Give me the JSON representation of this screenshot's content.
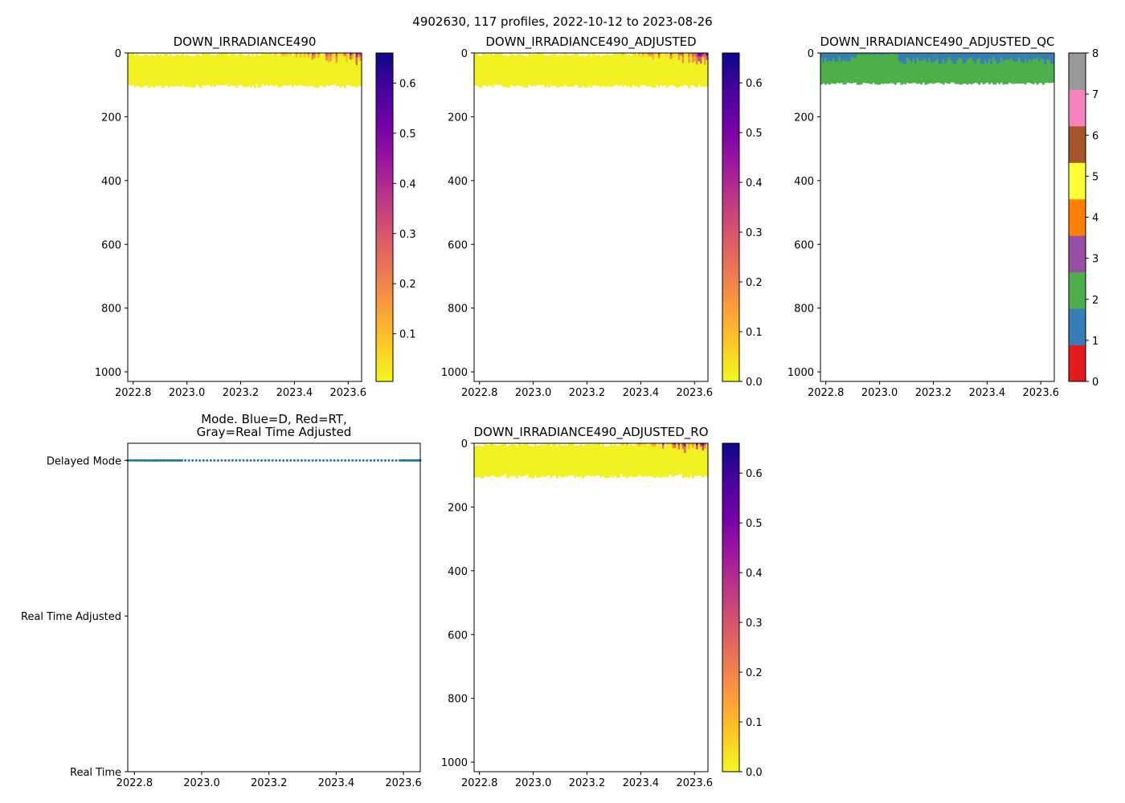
{
  "figure": {
    "suptitle": "4902630, 117 profiles, 2022-10-12 to 2023-08-26"
  },
  "colors": {
    "colormap": [
      "#f0f921",
      "#fdca26",
      "#fb9f3a",
      "#ed7953",
      "#d8576b",
      "#bd3786",
      "#9c179e",
      "#7201a8",
      "#46039f",
      "#0d0887"
    ],
    "qc_palette": [
      "#e41a1c",
      "#377eb8",
      "#4daf4a",
      "#984ea3",
      "#ff7f00",
      "#ffff33",
      "#a65628",
      "#f781bf",
      "#999999"
    ],
    "mode_marker": "#1f77b4"
  },
  "chart_data": [
    {
      "id": "p1",
      "type": "heatmap",
      "title": "DOWN_IRRADIANCE490",
      "xlabel": "",
      "ylabel": "",
      "xlim": [
        2022.78,
        2023.65
      ],
      "ylim": [
        1030,
        0
      ],
      "x_ticks": [
        2022.8,
        2023.0,
        2023.2,
        2023.4,
        2023.6
      ],
      "x_tick_labels": [
        "2022.8",
        "2023.0",
        "2023.2",
        "2023.4",
        "2023.6"
      ],
      "y_ticks": [
        0,
        200,
        400,
        600,
        800,
        1000
      ],
      "y_tick_labels": [
        "0",
        "200",
        "400",
        "600",
        "800",
        "1000"
      ],
      "data_depth_range": [
        0,
        100
      ],
      "time_range": [
        2022.78,
        2023.65
      ],
      "colorbar": {
        "range": [
          0.005,
          0.66
        ],
        "ticks": [
          0.1,
          0.2,
          0.3,
          0.4,
          0.5,
          0.6
        ],
        "tick_labels": [
          "0.1",
          "0.2",
          "0.3",
          "0.4",
          "0.5",
          "0.6"
        ]
      }
    },
    {
      "id": "p2",
      "type": "heatmap",
      "title": "DOWN_IRRADIANCE490_ADJUSTED",
      "xlabel": "",
      "ylabel": "",
      "xlim": [
        2022.78,
        2023.65
      ],
      "ylim": [
        1030,
        0
      ],
      "x_ticks": [
        2022.8,
        2023.0,
        2023.2,
        2023.4,
        2023.6
      ],
      "x_tick_labels": [
        "2022.8",
        "2023.0",
        "2023.2",
        "2023.4",
        "2023.6"
      ],
      "y_ticks": [
        0,
        200,
        400,
        600,
        800,
        1000
      ],
      "y_tick_labels": [
        "0",
        "200",
        "400",
        "600",
        "800",
        "1000"
      ],
      "data_depth_range": [
        0,
        100
      ],
      "time_range": [
        2022.78,
        2023.65
      ],
      "colorbar": {
        "range": [
          0.0,
          0.66
        ],
        "ticks": [
          0.0,
          0.1,
          0.2,
          0.3,
          0.4,
          0.5,
          0.6
        ],
        "tick_labels": [
          "0.0",
          "0.1",
          "0.2",
          "0.3",
          "0.4",
          "0.5",
          "0.6"
        ]
      }
    },
    {
      "id": "p3",
      "type": "heatmap",
      "title": "DOWN_IRRADIANCE490_ADJUSTED_QC",
      "xlabel": "",
      "ylabel": "",
      "xlim": [
        2022.78,
        2023.65
      ],
      "ylim": [
        1030,
        0
      ],
      "x_ticks": [
        2022.8,
        2023.0,
        2023.2,
        2023.4,
        2023.6
      ],
      "x_tick_labels": [
        "2022.8",
        "2023.0",
        "2023.2",
        "2023.4",
        "2023.6"
      ],
      "y_ticks": [
        0,
        200,
        400,
        600,
        800,
        1000
      ],
      "y_tick_labels": [
        "0",
        "200",
        "400",
        "600",
        "800",
        "1000"
      ],
      "data_depth_range": [
        0,
        100
      ],
      "qc_flags_present": [
        1,
        2
      ],
      "time_range": [
        2022.78,
        2023.65
      ],
      "colorbar": {
        "range": [
          0,
          8
        ],
        "ticks": [
          0,
          1,
          2,
          3,
          4,
          5,
          6,
          7,
          8
        ],
        "tick_labels": [
          "0",
          "1",
          "2",
          "3",
          "4",
          "5",
          "6",
          "7",
          "8"
        ]
      }
    },
    {
      "id": "p4",
      "type": "scatter",
      "title": "Mode. Blue=D, Red=RT,\nGray=Real Time Adjusted",
      "xlabel": "",
      "ylabel": "",
      "xlim": [
        2022.78,
        2023.65
      ],
      "ylim": [
        0,
        2.11
      ],
      "x_ticks": [
        2022.8,
        2023.0,
        2023.2,
        2023.4,
        2023.6
      ],
      "x_tick_labels": [
        "2022.8",
        "2023.0",
        "2023.2",
        "2023.4",
        "2023.6"
      ],
      "y_ticks": [
        2,
        1,
        0
      ],
      "y_tick_labels": [
        "Delayed Mode",
        "Real Time Adjusted",
        "Real Time"
      ],
      "series": [
        {
          "name": "Delayed Mode",
          "y": 2,
          "profile_count": 117,
          "x_range": [
            2022.78,
            2023.65
          ]
        }
      ]
    },
    {
      "id": "p5",
      "type": "heatmap",
      "title": "DOWN_IRRADIANCE490_ADJUSTED_RO",
      "xlabel": "",
      "ylabel": "",
      "xlim": [
        2022.78,
        2023.65
      ],
      "ylim": [
        1030,
        0
      ],
      "x_ticks": [
        2022.8,
        2023.0,
        2023.2,
        2023.4,
        2023.6
      ],
      "x_tick_labels": [
        "2022.8",
        "2023.0",
        "2023.2",
        "2023.4",
        "2023.6"
      ],
      "y_ticks": [
        0,
        200,
        400,
        600,
        800,
        1000
      ],
      "y_tick_labels": [
        "0",
        "200",
        "400",
        "600",
        "800",
        "1000"
      ],
      "data_depth_range": [
        0,
        100
      ],
      "time_range": [
        2022.78,
        2023.65
      ],
      "colorbar": {
        "range": [
          0.0,
          0.66
        ],
        "ticks": [
          0.0,
          0.1,
          0.2,
          0.3,
          0.4,
          0.5,
          0.6
        ],
        "tick_labels": [
          "0.0",
          "0.1",
          "0.2",
          "0.3",
          "0.4",
          "0.5",
          "0.6"
        ]
      }
    }
  ]
}
